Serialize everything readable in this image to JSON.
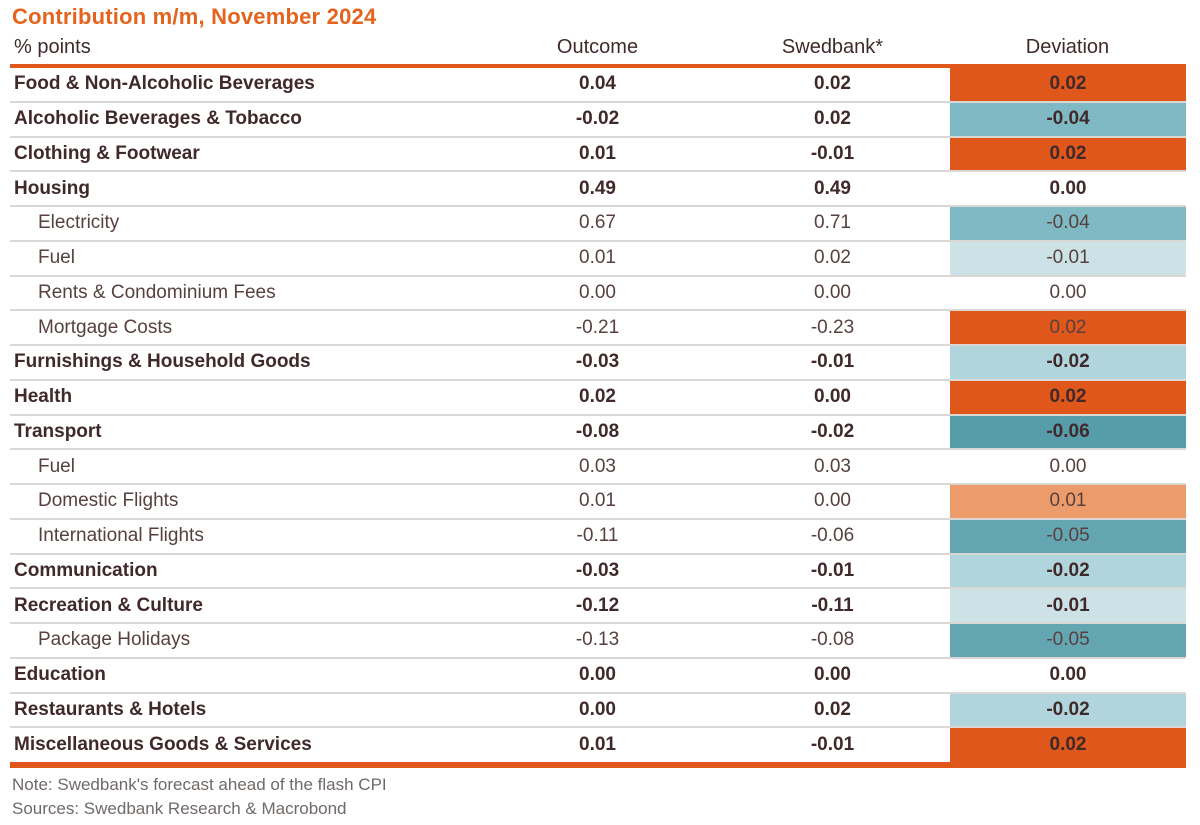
{
  "title": "Contribution m/m, November 2024",
  "chart_data": {
    "type": "table",
    "title": "Contribution m/m, November 2024",
    "columns": [
      "% points",
      "Outcome",
      "Swedbank*",
      "Deviation"
    ],
    "rows": [
      {
        "label": "Food & Non-Alcoholic Beverages",
        "bold": true,
        "indent": false,
        "outcome": "0.04",
        "swedbank": "0.02",
        "deviation": "0.02",
        "deviation_color": "#E0571B"
      },
      {
        "label": "Alcoholic Beverages & Tobacco",
        "bold": true,
        "indent": false,
        "outcome": "-0.02",
        "swedbank": "0.02",
        "deviation": "-0.04",
        "deviation_color": "#7FB9C4"
      },
      {
        "label": "Clothing & Footwear",
        "bold": true,
        "indent": false,
        "outcome": "0.01",
        "swedbank": "-0.01",
        "deviation": "0.02",
        "deviation_color": "#E0571B"
      },
      {
        "label": "Housing",
        "bold": true,
        "indent": false,
        "outcome": "0.49",
        "swedbank": "0.49",
        "deviation": "0.00",
        "deviation_color": ""
      },
      {
        "label": "Electricity",
        "bold": false,
        "indent": true,
        "outcome": "0.67",
        "swedbank": "0.71",
        "deviation": "-0.04",
        "deviation_color": "#7FB9C4"
      },
      {
        "label": "Fuel",
        "bold": false,
        "indent": true,
        "outcome": "0.01",
        "swedbank": "0.02",
        "deviation": "-0.01",
        "deviation_color": "#CDE2E7"
      },
      {
        "label": "Rents & Condominium Fees",
        "bold": false,
        "indent": true,
        "outcome": "0.00",
        "swedbank": "0.00",
        "deviation": "0.00",
        "deviation_color": ""
      },
      {
        "label": "Mortgage Costs",
        "bold": false,
        "indent": true,
        "outcome": "-0.21",
        "swedbank": "-0.23",
        "deviation": "0.02",
        "deviation_color": "#E0571B"
      },
      {
        "label": "Furnishings & Household Goods",
        "bold": true,
        "indent": false,
        "outcome": "-0.03",
        "swedbank": "-0.01",
        "deviation": "-0.02",
        "deviation_color": "#B0D5DC"
      },
      {
        "label": "Health",
        "bold": true,
        "indent": false,
        "outcome": "0.02",
        "swedbank": "0.00",
        "deviation": "0.02",
        "deviation_color": "#E0571B"
      },
      {
        "label": "Transport",
        "bold": true,
        "indent": false,
        "outcome": "-0.08",
        "swedbank": "-0.02",
        "deviation": "-0.06",
        "deviation_color": "#579DA9"
      },
      {
        "label": "Fuel",
        "bold": false,
        "indent": true,
        "outcome": "0.03",
        "swedbank": "0.03",
        "deviation": "0.00",
        "deviation_color": ""
      },
      {
        "label": "Domestic Flights",
        "bold": false,
        "indent": true,
        "outcome": "0.01",
        "swedbank": "0.00",
        "deviation": "0.01",
        "deviation_color": "#EC9C6A"
      },
      {
        "label": "International Flights",
        "bold": false,
        "indent": true,
        "outcome": "-0.11",
        "swedbank": "-0.06",
        "deviation": "-0.05",
        "deviation_color": "#63A6B2"
      },
      {
        "label": "Communication",
        "bold": true,
        "indent": false,
        "outcome": "-0.03",
        "swedbank": "-0.01",
        "deviation": "-0.02",
        "deviation_color": "#B0D5DC"
      },
      {
        "label": "Recreation & Culture",
        "bold": true,
        "indent": false,
        "outcome": "-0.12",
        "swedbank": "-0.11",
        "deviation": "-0.01",
        "deviation_color": "#CDE2E7"
      },
      {
        "label": "Package Holidays",
        "bold": false,
        "indent": true,
        "outcome": "-0.13",
        "swedbank": "-0.08",
        "deviation": "-0.05",
        "deviation_color": "#63A6B2"
      },
      {
        "label": "Education",
        "bold": true,
        "indent": false,
        "outcome": "0.00",
        "swedbank": "0.00",
        "deviation": "0.00",
        "deviation_color": ""
      },
      {
        "label": "Restaurants & Hotels",
        "bold": true,
        "indent": false,
        "outcome": "0.00",
        "swedbank": "0.02",
        "deviation": "-0.02",
        "deviation_color": "#B0D5DC"
      },
      {
        "label": "Miscellaneous Goods & Services",
        "bold": true,
        "indent": false,
        "outcome": "0.01",
        "swedbank": "-0.01",
        "deviation": "0.02",
        "deviation_color": "#E0571B"
      }
    ],
    "notes": [
      "Note: Swedbank's forecast ahead of the flash CPI",
      "Sources: Swedbank Research & Macrobond"
    ],
    "layout_hints": {
      "positive_deviation_color_strong": "#E0571B",
      "positive_deviation_color_light": "#EC9C6A",
      "negative_deviation_colors_light_to_dark": [
        "#CDE2E7",
        "#B0D5DC",
        "#7FB9C4",
        "#63A6B2",
        "#579DA9"
      ],
      "accent_orange": "#E0571B",
      "title_orange": "#E4631D"
    }
  }
}
